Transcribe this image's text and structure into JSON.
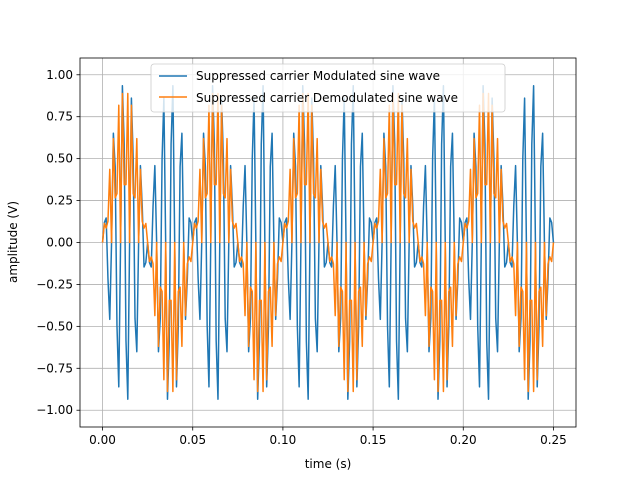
{
  "chart_data": {
    "type": "line",
    "xlabel": "time (s)",
    "ylabel": "amplitude (V)",
    "xlim": [
      -0.0125,
      0.2625
    ],
    "ylim": [
      -1.1,
      1.1
    ],
    "x_ticks": [
      0.0,
      0.05,
      0.1,
      0.15,
      0.2,
      0.25
    ],
    "x_tick_labels": [
      "0.00",
      "0.05",
      "0.10",
      "0.15",
      "0.20",
      "0.25"
    ],
    "y_ticks": [
      -1.0,
      -0.75,
      -0.5,
      -0.25,
      0.0,
      0.25,
      0.5,
      0.75,
      1.0
    ],
    "y_tick_labels": [
      "−1.00",
      "−0.75",
      "−0.50",
      "−0.25",
      "0.00",
      "0.25",
      "0.50",
      "0.75",
      "1.00"
    ],
    "grid": true,
    "legend_position": "top-center",
    "sampling": {
      "t_start": 0,
      "t_end": 0.25,
      "num_points": 251
    },
    "series": [
      {
        "name": "Suppressed carrier Modulated sine wave",
        "color": "#1f77b4",
        "description_formula": "sin(2π·20t)·sin(2π·200t)",
        "message_freq_hz": 20,
        "carrier_freq_hz": 200
      },
      {
        "name": "Suppressed carrier Demodulated sine wave",
        "color": "#ff7f0e",
        "description_formula": "sin(2π·20t)·sin²(2π·200t)",
        "message_freq_hz": 20,
        "carrier_freq_hz": 200
      }
    ]
  }
}
